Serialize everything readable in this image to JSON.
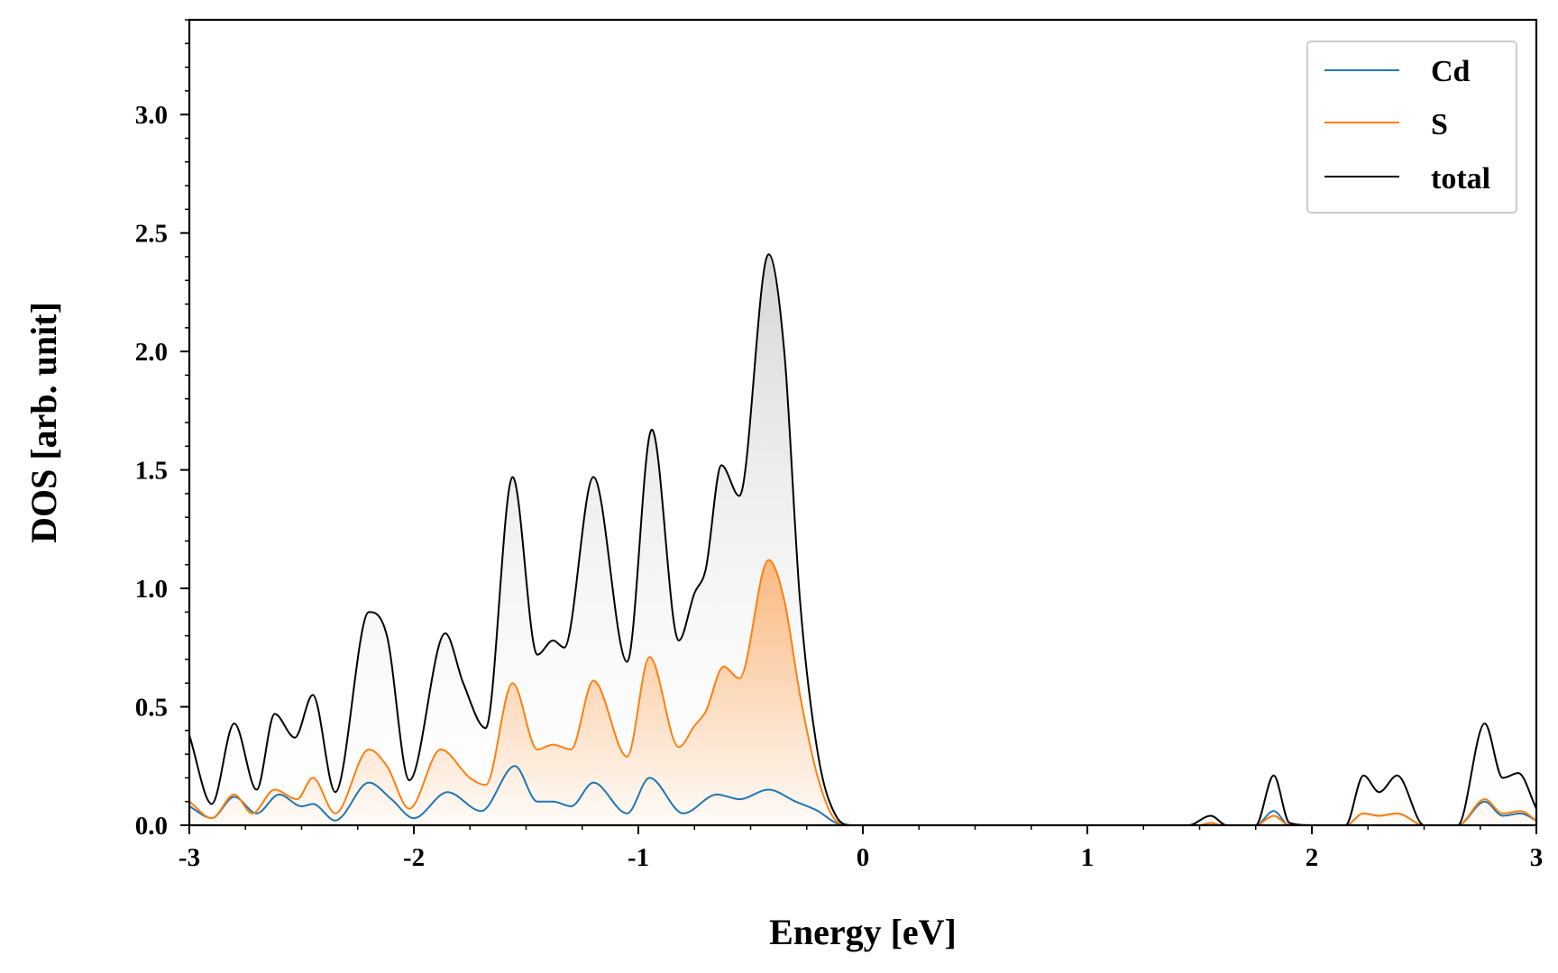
{
  "chart_data": {
    "type": "line",
    "title": "",
    "xlabel": "Energy [eV]",
    "ylabel": "DOS [arb. unit]",
    "xlim": [
      -3,
      3
    ],
    "ylim": [
      0,
      3.4
    ],
    "xticks": [
      -3,
      -2,
      -1,
      0,
      1,
      2,
      3
    ],
    "xtick_labels": [
      "-3",
      "-2",
      "-1",
      "0",
      "1",
      "2",
      "3"
    ],
    "yticks": [
      0,
      0.5,
      1,
      1.5,
      2,
      2.5,
      3
    ],
    "ytick_labels": [
      "0.0",
      "0.5",
      "1.0",
      "1.5",
      "2.0",
      "2.5",
      "3.0"
    ],
    "grid": false,
    "legend_position": "top-right",
    "series": [
      {
        "name": "Cd",
        "color": "#1f77b4",
        "x": [
          -3.0,
          -2.9,
          -2.8,
          -2.7,
          -2.6,
          -2.5,
          -2.45,
          -2.35,
          -2.2,
          -2.1,
          -2.0,
          -1.85,
          -1.7,
          -1.55,
          -1.45,
          -1.38,
          -1.3,
          -1.2,
          -1.05,
          -0.95,
          -0.8,
          -0.65,
          -0.55,
          -0.42,
          -0.3,
          -0.2,
          -0.12,
          -0.05,
          0.0,
          1.5,
          1.55,
          1.6,
          1.75,
          1.83,
          1.9,
          2.0,
          2.15,
          2.23,
          2.3,
          2.38,
          2.5,
          2.65,
          2.77,
          2.85,
          2.93,
          3.0
        ],
        "y": [
          0.08,
          0.03,
          0.12,
          0.05,
          0.13,
          0.08,
          0.09,
          0.02,
          0.18,
          0.11,
          0.03,
          0.14,
          0.06,
          0.25,
          0.1,
          0.1,
          0.08,
          0.18,
          0.05,
          0.2,
          0.05,
          0.13,
          0.11,
          0.15,
          0.1,
          0.06,
          0.01,
          0.0,
          0.0,
          0.0,
          0.01,
          0.0,
          0.0,
          0.06,
          0.0,
          0.0,
          0.0,
          0.05,
          0.04,
          0.05,
          0.0,
          0.0,
          0.1,
          0.04,
          0.05,
          0.02
        ]
      },
      {
        "name": "S",
        "color": "#ff7f0e",
        "x": [
          -3.0,
          -2.9,
          -2.8,
          -2.72,
          -2.62,
          -2.52,
          -2.45,
          -2.35,
          -2.2,
          -2.12,
          -2.02,
          -1.88,
          -1.75,
          -1.68,
          -1.56,
          -1.45,
          -1.38,
          -1.3,
          -1.2,
          -1.05,
          -0.95,
          -0.82,
          -0.75,
          -0.7,
          -0.62,
          -0.55,
          -0.42,
          -0.35,
          -0.28,
          -0.2,
          -0.12,
          -0.05,
          0.0,
          1.5,
          1.55,
          1.6,
          1.75,
          1.83,
          1.9,
          2.0,
          2.15,
          2.23,
          2.3,
          2.38,
          2.5,
          2.65,
          2.77,
          2.85,
          2.93,
          3.0
        ],
        "y": [
          0.1,
          0.03,
          0.13,
          0.05,
          0.15,
          0.11,
          0.2,
          0.05,
          0.32,
          0.25,
          0.07,
          0.32,
          0.2,
          0.17,
          0.6,
          0.32,
          0.34,
          0.32,
          0.61,
          0.29,
          0.71,
          0.33,
          0.42,
          0.48,
          0.67,
          0.62,
          1.12,
          0.95,
          0.55,
          0.2,
          0.02,
          0.0,
          0.0,
          0.0,
          0.01,
          0.0,
          0.0,
          0.04,
          0.0,
          0.0,
          0.0,
          0.05,
          0.04,
          0.05,
          0.0,
          0.0,
          0.11,
          0.05,
          0.06,
          0.02
        ]
      },
      {
        "name": "total",
        "color": "#000000",
        "x": [
          -3.0,
          -2.9,
          -2.8,
          -2.7,
          -2.62,
          -2.53,
          -2.45,
          -2.35,
          -2.2,
          -2.12,
          -2.02,
          -1.86,
          -1.78,
          -1.68,
          -1.56,
          -1.45,
          -1.38,
          -1.33,
          -1.2,
          -1.05,
          -0.94,
          -0.82,
          -0.75,
          -0.7,
          -0.63,
          -0.55,
          -0.42,
          -0.35,
          -0.28,
          -0.2,
          -0.12,
          -0.05,
          0.0,
          1.45,
          1.55,
          1.62,
          1.75,
          1.83,
          1.9,
          2.0,
          2.15,
          2.23,
          2.3,
          2.38,
          2.5,
          2.65,
          2.77,
          2.85,
          2.92,
          3.0
        ],
        "y": [
          0.38,
          0.09,
          0.43,
          0.15,
          0.47,
          0.37,
          0.55,
          0.14,
          0.9,
          0.8,
          0.19,
          0.81,
          0.6,
          0.41,
          1.47,
          0.72,
          0.78,
          0.75,
          1.47,
          0.69,
          1.67,
          0.78,
          0.98,
          1.08,
          1.52,
          1.39,
          2.41,
          2.0,
          0.95,
          0.3,
          0.04,
          0.0,
          0.0,
          0.0,
          0.04,
          0.0,
          0.0,
          0.21,
          0.01,
          0.0,
          0.0,
          0.21,
          0.14,
          0.21,
          0.0,
          0.0,
          0.43,
          0.2,
          0.22,
          0.07
        ]
      }
    ]
  }
}
